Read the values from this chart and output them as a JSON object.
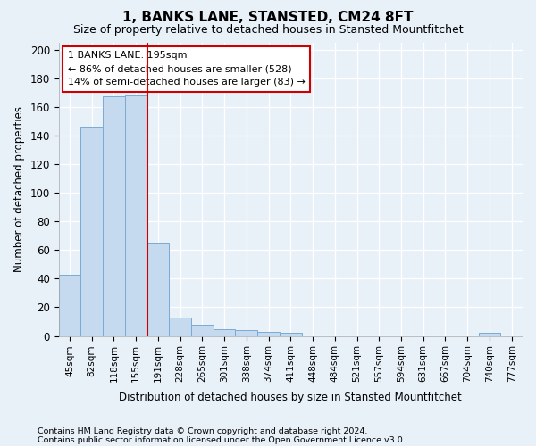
{
  "title": "1, BANKS LANE, STANSTED, CM24 8FT",
  "subtitle": "Size of property relative to detached houses in Stansted Mountfitchet",
  "xlabel": "Distribution of detached houses by size in Stansted Mountfitchet",
  "ylabel": "Number of detached properties",
  "footnote1": "Contains HM Land Registry data © Crown copyright and database right 2024.",
  "footnote2": "Contains public sector information licensed under the Open Government Licence v3.0.",
  "categories": [
    "45sqm",
    "82sqm",
    "118sqm",
    "155sqm",
    "191sqm",
    "228sqm",
    "265sqm",
    "301sqm",
    "338sqm",
    "374sqm",
    "411sqm",
    "448sqm",
    "484sqm",
    "521sqm",
    "557sqm",
    "594sqm",
    "631sqm",
    "667sqm",
    "704sqm",
    "740sqm",
    "777sqm"
  ],
  "values": [
    43,
    146,
    167,
    168,
    65,
    13,
    8,
    5,
    4,
    3,
    2,
    0,
    0,
    0,
    0,
    0,
    0,
    0,
    0,
    2,
    0
  ],
  "bar_color": "#c5d9ef",
  "bar_edge_color": "#7aaad4",
  "background_color": "#e8f0f8",
  "grid_color": "#ffffff",
  "ylim": [
    0,
    205
  ],
  "yticks": [
    0,
    20,
    40,
    60,
    80,
    100,
    120,
    140,
    160,
    180,
    200
  ],
  "red_line_x": 4.5,
  "annotation_text1": "1 BANKS LANE: 195sqm",
  "annotation_text2": "← 86% of detached houses are smaller (528)",
  "annotation_text3": "14% of semi-detached houses are larger (83) →",
  "annotation_box_color": "#ffffff",
  "annotation_border_color": "#cc0000",
  "red_line_color": "#cc0000"
}
